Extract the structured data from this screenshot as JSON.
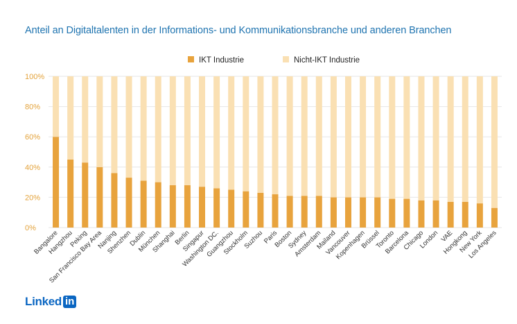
{
  "chart_data": {
    "type": "bar",
    "stacked": true,
    "title": "Anteil an Digitaltalenten in der Informations- und Kommunikationsbranche und anderen Branchen",
    "categories": [
      "Bangalore",
      "Hangzhou",
      "Peking",
      "San Francisco Bay Area",
      "Nanjing",
      "Shenzhen",
      "Dublin",
      "München",
      "Shanghai",
      "Berlin",
      "Singapur",
      "Washington DC.",
      "Guangzhou",
      "Stockholm",
      "Suzhou",
      "Paris",
      "Boston",
      "Sydney",
      "Amsterdam",
      "Mailand",
      "Vancouver",
      "Kopenhagen",
      "Brüssel",
      "Toronto",
      "Barcelona",
      "Chicago",
      "London",
      "VAE",
      "Hongkong",
      "New York",
      "Los Angeles"
    ],
    "series": [
      {
        "name": "IKT Industrie",
        "color": "#e8a33d",
        "values": [
          60,
          45,
          43,
          40,
          36,
          33,
          31,
          30,
          28,
          28,
          27,
          26,
          25,
          24,
          23,
          22,
          21,
          21,
          21,
          20,
          20,
          20,
          20,
          19,
          19,
          18,
          18,
          17,
          17,
          16,
          13
        ]
      },
      {
        "name": "Nicht-IKT Industrie",
        "color": "#fae0b3",
        "values": [
          40,
          55,
          57,
          60,
          64,
          67,
          69,
          70,
          72,
          72,
          73,
          74,
          75,
          76,
          77,
          78,
          79,
          79,
          79,
          80,
          80,
          80,
          80,
          81,
          81,
          82,
          82,
          83,
          83,
          84,
          87
        ]
      }
    ],
    "ylim": [
      0,
      100
    ],
    "yticks": [
      "0%",
      "20%",
      "40%",
      "60%",
      "80%",
      "100%"
    ],
    "grid": true,
    "legend": "top-center"
  },
  "logo": {
    "word": "Linked",
    "badge": "in"
  }
}
